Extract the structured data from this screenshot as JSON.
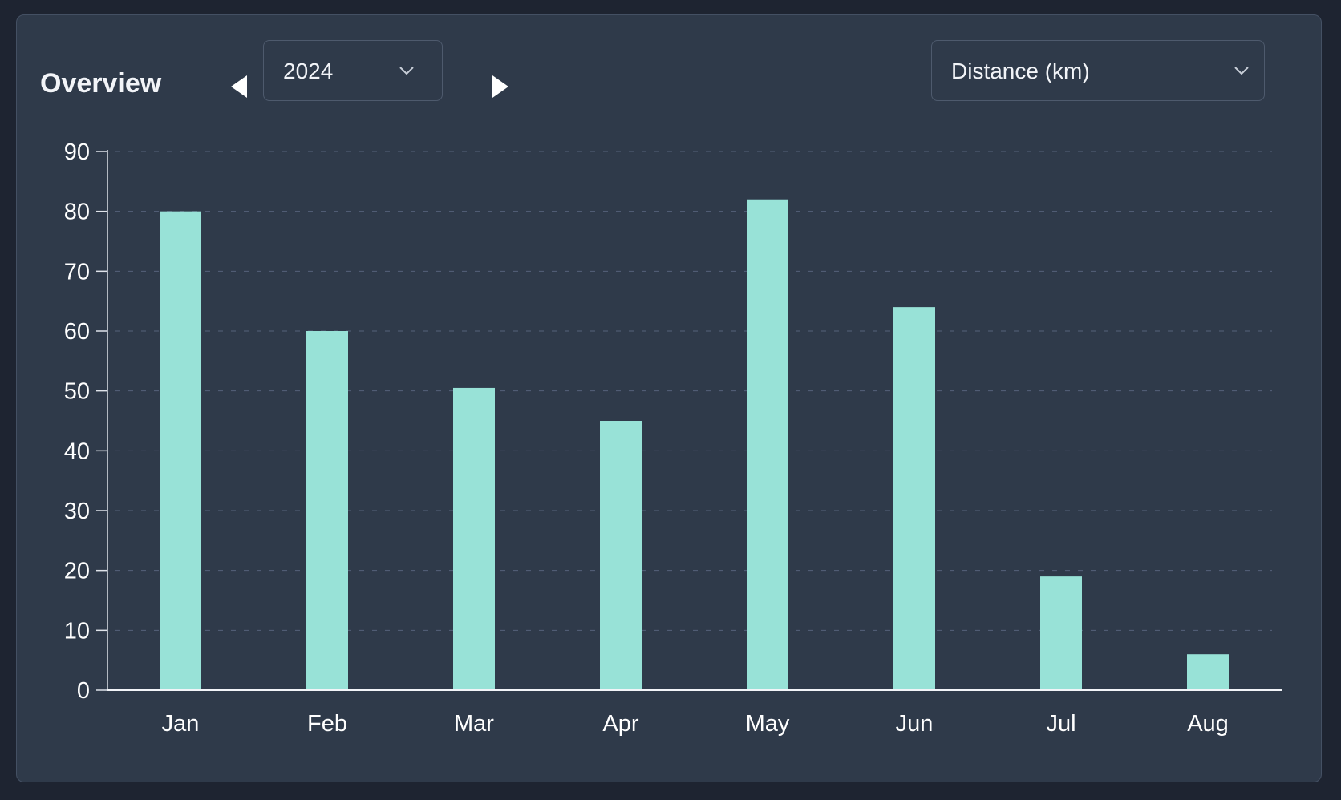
{
  "header": {
    "title": "Overview",
    "prev_icon": "triangle-left-icon",
    "next_icon": "triangle-right-icon"
  },
  "year_select": {
    "value": "2024"
  },
  "metric_select": {
    "value": "Distance (km)"
  },
  "colors": {
    "bar": "#98e2d7",
    "panel": "#2f3a4a",
    "text": "#ffffff",
    "grid": "#56627a"
  },
  "chart_data": {
    "type": "bar",
    "categories": [
      "Jan",
      "Feb",
      "Mar",
      "Apr",
      "May",
      "Jun",
      "Jul",
      "Aug"
    ],
    "values": [
      80,
      60,
      50.5,
      45,
      82,
      64,
      19,
      6
    ],
    "ylim": [
      0,
      90
    ],
    "yticks": [
      0,
      10,
      20,
      30,
      40,
      50,
      60,
      70,
      80,
      90
    ],
    "grid": true,
    "grid_style": "dashed-horizontal"
  }
}
